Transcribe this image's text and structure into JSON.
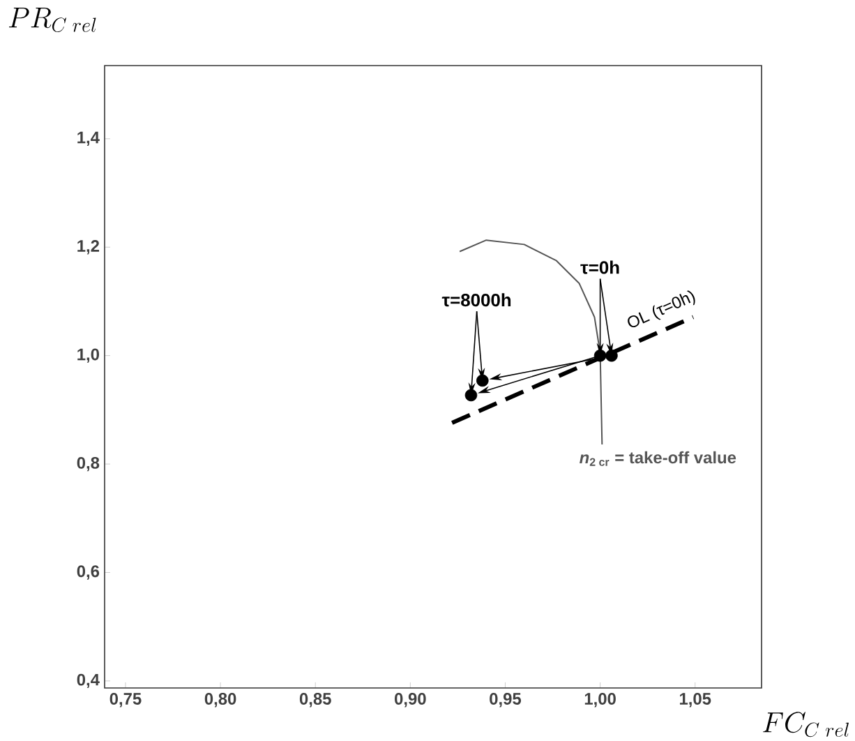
{
  "chart_data": {
    "type": "scatter",
    "xlabel": "FC_{C\\;rel}",
    "ylabel": "PR_{C\\;rel}",
    "xlim": [
      0.739,
      1.085
    ],
    "ylim": [
      0.387,
      1.535
    ],
    "xticks": [
      {
        "value": 0.75,
        "label": "0,75"
      },
      {
        "value": 0.8,
        "label": "0,80"
      },
      {
        "value": 0.85,
        "label": "0,85"
      },
      {
        "value": 0.9,
        "label": "0,90"
      },
      {
        "value": 0.95,
        "label": "0,95"
      },
      {
        "value": 1.0,
        "label": "1,00"
      },
      {
        "value": 1.05,
        "label": "1,05"
      }
    ],
    "yticks": [
      {
        "value": 0.4,
        "label": "0,4"
      },
      {
        "value": 0.6,
        "label": "0,6"
      },
      {
        "value": 0.8,
        "label": "0,8"
      },
      {
        "value": 1.0,
        "label": "1,0"
      },
      {
        "value": 1.2,
        "label": "1,2"
      },
      {
        "value": 1.4,
        "label": "1,4"
      }
    ],
    "series": [
      {
        "color": "#000000",
        "x": [
          1.0,
          1.006,
          0.932,
          0.938
        ],
        "values": [
          1.0,
          1.0,
          0.927,
          0.954
        ]
      },
      {
        "type": "line",
        "name": "OL (τ=0h)",
        "color": "#000000",
        "line_style": "dashed",
        "x": [
          0.922,
          1.049
        ],
        "values": [
          0.876,
          1.071
        ]
      },
      {
        "type": "line",
        "name": "*n*$_{2 cr}$ = take-off value",
        "color": "#555555",
        "line_style": "solid",
        "x": [
          1.001,
          1.0,
          0.997,
          0.989,
          0.977,
          0.96,
          0.94,
          0.926
        ],
        "values": [
          0.836,
          1.005,
          1.071,
          1.133,
          1.175,
          1.205,
          1.213,
          1.192
        ]
      }
    ],
    "annotations": [
      {
        "text": "τ=0h",
        "x": 1.0,
        "y": 1.0
      },
      {
        "text": "τ=8000h",
        "x": 0.935,
        "y": 0.94
      }
    ]
  }
}
